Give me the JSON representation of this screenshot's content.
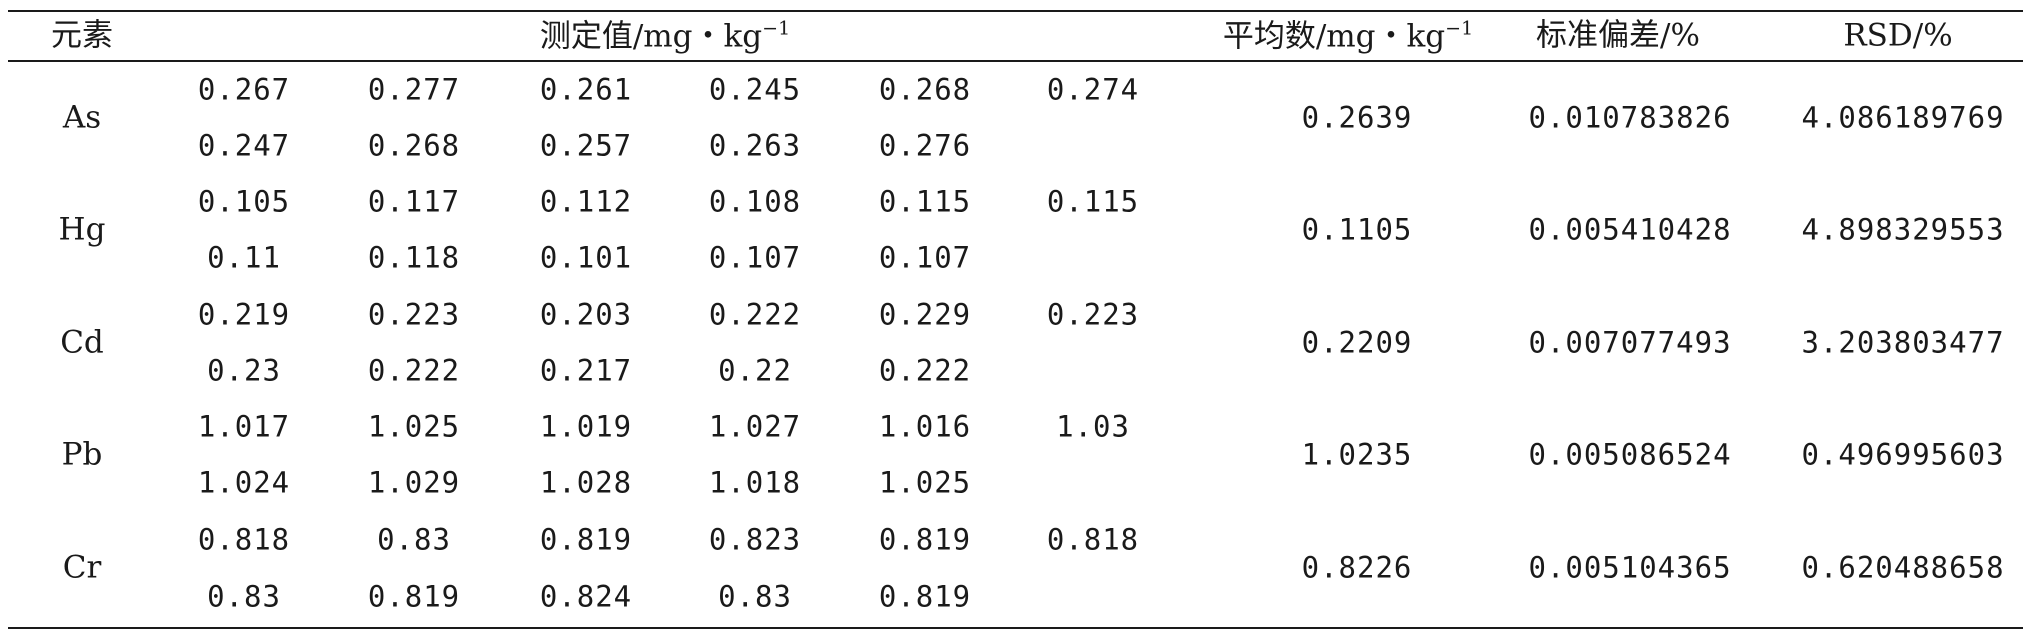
{
  "headers": {
    "element": "元素",
    "measured_prefix": "测定值/mg・kg",
    "measured_sup": "−1",
    "mean_prefix": "平均数/mg・kg",
    "mean_sup": "−1",
    "std": "标准偏差/%",
    "rsd": "RSD/%"
  },
  "rows": [
    {
      "element": "As",
      "line1": [
        "0.267",
        "0.277",
        "0.261",
        "0.245",
        "0.268",
        "0.274"
      ],
      "line2": [
        "0.247",
        "0.268",
        "0.257",
        "0.263",
        "0.276"
      ],
      "mean": "0.2639",
      "std": "0.010783826",
      "rsd": "4.086189769"
    },
    {
      "element": "Hg",
      "line1": [
        "0.105",
        "0.117",
        "0.112",
        "0.108",
        "0.115",
        "0.115"
      ],
      "line2": [
        "0.11",
        "0.118",
        "0.101",
        "0.107",
        "0.107"
      ],
      "mean": "0.1105",
      "std": "0.005410428",
      "rsd": "4.898329553"
    },
    {
      "element": "Cd",
      "line1": [
        "0.219",
        "0.223",
        "0.203",
        "0.222",
        "0.229",
        "0.223"
      ],
      "line2": [
        "0.23",
        "0.222",
        "0.217",
        "0.22",
        "0.222"
      ],
      "mean": "0.2209",
      "std": "0.007077493",
      "rsd": "3.203803477"
    },
    {
      "element": "Pb",
      "line1": [
        "1.017",
        "1.025",
        "1.019",
        "1.027",
        "1.016",
        "1.03"
      ],
      "line2": [
        "1.024",
        "1.029",
        "1.028",
        "1.018",
        "1.025"
      ],
      "mean": "1.0235",
      "std": "0.005086524",
      "rsd": "0.496995603"
    },
    {
      "element": "Cr",
      "line1": [
        "0.818",
        "0.83",
        "0.819",
        "0.823",
        "0.819",
        "0.818"
      ],
      "line2": [
        "0.83",
        "0.819",
        "0.824",
        "0.83",
        "0.819"
      ],
      "mean": "0.8226",
      "std": "0.005104365",
      "rsd": "0.620488658"
    }
  ]
}
